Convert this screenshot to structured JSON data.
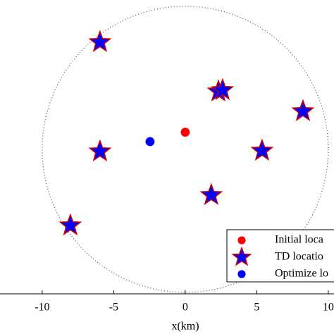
{
  "chart_data": {
    "type": "scatter",
    "xlabel": "x(km)",
    "xlim": [
      -12.95,
      10.4
    ],
    "ylim": [
      -10.1,
      10.44
    ],
    "xticks": [
      -10,
      -5,
      0,
      5,
      10
    ],
    "circle": {
      "x": 0,
      "y": 0,
      "r": 10,
      "color": "#7a2a7a"
    },
    "legend": "lower right",
    "series": [
      {
        "name": "Initial loca",
        "marker": "circle",
        "color": "#ff0000",
        "x": [
          0
        ],
        "y": [
          1.2
        ]
      },
      {
        "name": "TD locatio",
        "marker": "star",
        "color": "#0000ff",
        "edge": "#cc0000",
        "x": [
          -5.96,
          2.32,
          2.61,
          8.23,
          -5.96,
          5.37,
          1.82,
          -8.03
        ],
        "y": [
          7.49,
          4.04,
          4.14,
          2.66,
          -0.15,
          -0.1,
          -3.2,
          -5.32
        ]
      },
      {
        "name": "Optimize lo",
        "marker": "circle",
        "color": "#0000ff",
        "x": [
          -2.46
        ],
        "y": [
          0.54
        ]
      }
    ]
  }
}
